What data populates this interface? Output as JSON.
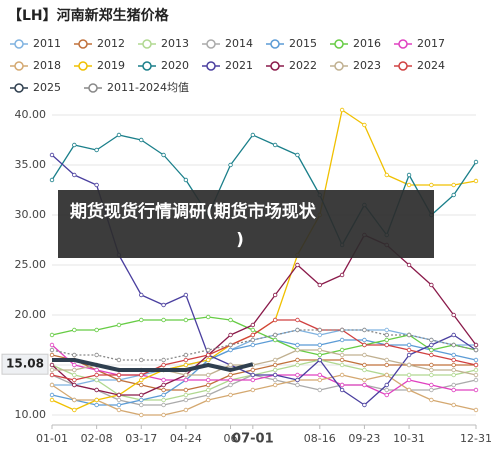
{
  "chart_data": {
    "type": "line",
    "title": "【LH】河南新郑生猪价格",
    "overlay_text": [
      "期货现货行情调研(期货市场现状",
      ")"
    ],
    "categories": [
      "01-01",
      null,
      "02-08",
      null,
      "03-17",
      null,
      "04-24",
      null,
      "06",
      "07-01",
      null,
      null,
      "08-16",
      null,
      "09-23",
      null,
      "10-31",
      null,
      null,
      "12-31"
    ],
    "ylim": [
      9,
      41.5
    ],
    "yticks": [
      {
        "value": 10,
        "label": "10.00"
      },
      {
        "value": 15,
        "label": "15.00"
      },
      {
        "value": 20,
        "label": "20.00"
      },
      {
        "value": 25,
        "label": "25.00"
      },
      {
        "value": 30,
        "label": "30.00"
      },
      {
        "value": 35,
        "label": "35.00"
      },
      {
        "value": 40,
        "label": "40.00"
      }
    ],
    "grid": true,
    "current_value": {
      "value": 15.08,
      "label": "15.08"
    },
    "series": [
      {
        "name": "2011",
        "color": "#7fb2e0",
        "values": [
          13,
          13,
          13.5,
          13.5,
          14,
          14.5,
          15,
          15.5,
          16.5,
          17.5,
          18,
          18.5,
          18,
          18.5,
          18.5,
          18.5,
          18,
          17.5,
          17,
          17
        ]
      },
      {
        "name": "2012",
        "color": "#c0703a",
        "values": [
          16,
          15.5,
          14.5,
          13.5,
          13,
          12.5,
          12.5,
          13,
          14,
          14.5,
          15,
          15.5,
          15.5,
          15.5,
          15,
          15,
          15,
          15,
          15,
          15
        ]
      },
      {
        "name": "2013",
        "color": "#b0d890",
        "values": [
          15,
          14,
          13.5,
          12,
          11.5,
          11.5,
          12,
          12.5,
          13.5,
          14,
          14.5,
          15,
          15.5,
          15,
          14.5,
          14,
          14,
          14,
          14,
          14.5
        ]
      },
      {
        "name": "2014",
        "color": "#aaaaaa",
        "values": [
          14,
          13,
          12.5,
          11.5,
          11,
          11,
          11.5,
          12,
          13,
          14,
          13.5,
          13,
          12.5,
          13,
          13,
          12.5,
          12.5,
          12.5,
          13,
          13.5
        ]
      },
      {
        "name": "2015",
        "color": "#5b9bd5",
        "values": [
          12,
          11.5,
          11,
          11,
          11.5,
          12,
          13.5,
          15.5,
          16.5,
          17,
          17.5,
          17,
          17,
          17.5,
          17.5,
          17,
          17,
          16.5,
          16,
          15.5
        ]
      },
      {
        "name": "2016",
        "color": "#66cc44",
        "values": [
          18,
          18.5,
          18.5,
          19,
          19.5,
          19.5,
          19.5,
          19.8,
          19.5,
          18.5,
          17.5,
          16.5,
          16,
          16.5,
          17,
          17.5,
          18,
          16.5,
          17,
          16.5
        ]
      },
      {
        "name": "2017",
        "color": "#e040c0",
        "values": [
          17,
          15,
          14.5,
          14,
          14,
          13.5,
          13.5,
          13.5,
          13.5,
          13.5,
          14,
          14,
          14,
          13,
          13,
          12,
          13.5,
          13,
          12.5,
          12.5
        ]
      },
      {
        "name": "2018",
        "color": "#d4a870",
        "values": [
          13,
          11.5,
          11.5,
          10.5,
          10,
          10,
          10.5,
          11.5,
          12,
          12.5,
          13,
          13.5,
          13.5,
          14,
          13.5,
          14,
          12.5,
          11.5,
          11,
          10.5
        ]
      },
      {
        "name": "2019",
        "color": "#f0c000",
        "values": [
          11.5,
          10.5,
          11.5,
          12,
          13.5,
          14.5,
          15,
          15.5,
          17,
          18,
          19.5,
          26,
          30,
          40.5,
          39,
          34,
          33,
          33,
          33,
          33.4
        ]
      },
      {
        "name": "2020",
        "color": "#1a7f8a",
        "values": [
          33.5,
          37,
          36.5,
          38,
          37.5,
          36,
          33.5,
          30,
          35,
          38,
          37,
          36,
          32,
          27,
          31,
          28,
          34,
          30,
          32,
          35.3
        ]
      },
      {
        "name": "2021",
        "color": "#4a3f9f",
        "values": [
          36,
          34,
          33,
          26,
          22,
          21,
          22,
          16,
          15,
          14,
          14,
          13.5,
          15.5,
          12.5,
          11,
          13,
          16,
          17,
          18,
          16.5
        ]
      },
      {
        "name": "2022",
        "color": "#8a1a4a",
        "values": [
          15,
          13,
          12.5,
          12,
          12,
          13,
          14,
          16,
          18,
          19,
          22,
          25,
          23,
          24,
          28,
          27,
          25,
          23,
          20,
          17
        ]
      },
      {
        "name": "2023",
        "color": "#c0b090",
        "values": [
          14.5,
          14.5,
          15,
          14.5,
          14.5,
          14.5,
          14,
          14,
          15,
          15,
          15.5,
          16.5,
          16.5,
          16,
          16,
          15.5,
          15,
          14.5,
          14.5,
          14
        ]
      },
      {
        "name": "2024",
        "color": "#d04040",
        "values": [
          14,
          13.5,
          14,
          14,
          14,
          15,
          15.5,
          16,
          17,
          18,
          19.5,
          19.5,
          18.5,
          18.5,
          17,
          17,
          16.5,
          16,
          15.5,
          15
        ]
      },
      {
        "name": "2025",
        "color": "#2f3f4f",
        "values": [
          15.5,
          15.5,
          15,
          14.5,
          14.5,
          14.5,
          14.5,
          15,
          14.5,
          15.08,
          null,
          null,
          null,
          null,
          null,
          null,
          null,
          null,
          null,
          null
        ]
      },
      {
        "name": "2011-2024均值",
        "color": "#888888",
        "values": [
          16.5,
          16,
          16,
          15.5,
          15.5,
          15.5,
          16,
          16.5,
          17,
          17.5,
          18,
          18.5,
          18.5,
          18.5,
          18.5,
          18,
          18,
          17.5,
          17,
          16.5
        ]
      }
    ]
  }
}
